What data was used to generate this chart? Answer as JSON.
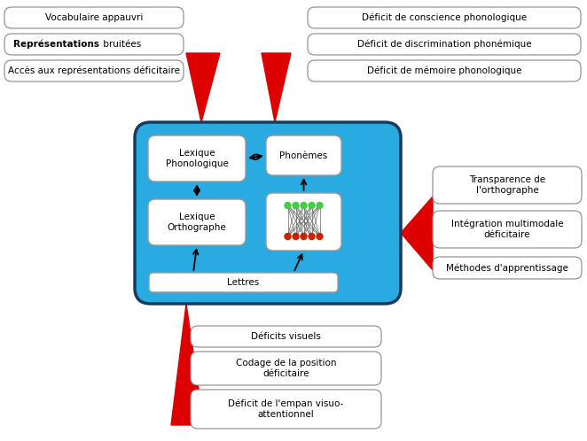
{
  "bg_color": "#ffffff",
  "central_box_color": "#29ABE2",
  "central_box_border": "#1a3a5c",
  "white_box_color": "#ffffff",
  "white_box_border": "#aaaaaa",
  "red_arrow_color": "#dd0000",
  "arrow_color": "#000000",
  "left_labels": [
    "Vocabulaire appauvri",
    "Représentations bruitées",
    "Accès aux représentations déficitaire"
  ],
  "right_top_labels": [
    "Déficit de conscience phonologique",
    "Déficit de discrimination phonémique",
    "Déficit de mémoire phonologique"
  ],
  "right_mid_labels": [
    "Transparence de\nl'orthographe",
    "Intégration multimodale\ndéficitaire",
    "Méthodes d'apprentissage"
  ],
  "bottom_labels": [
    "Déficits visuels",
    "Codage de la position\ndéficitaire",
    "Déficit de l'empan visuo-\nattentionnel"
  ],
  "inner_labels": {
    "lexique_phono": "Lexique\nPhonologique",
    "phonemes": "Phonèmes",
    "lexique_ortho": "Lexique\nOrthographe",
    "lettres": "Lettres"
  },
  "font_size_labels": 7.5,
  "font_size_inner": 7.5
}
